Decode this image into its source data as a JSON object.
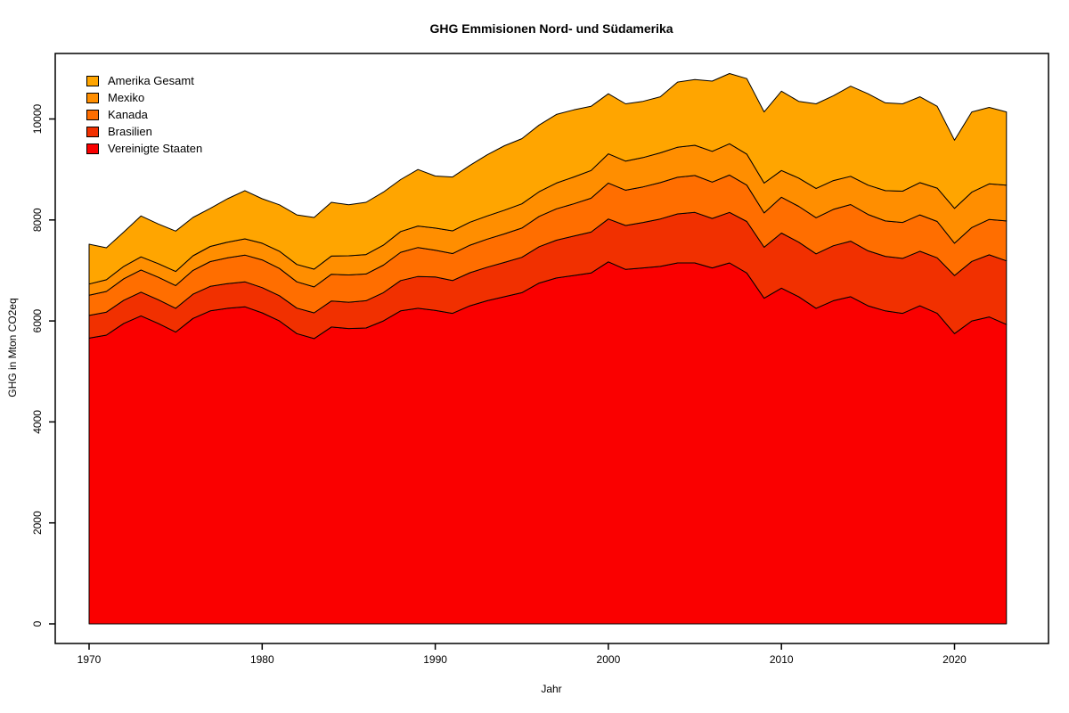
{
  "title": "GHG Emmisionen Nord- und Südamerika",
  "chart_data": {
    "type": "area",
    "stacked": true,
    "title": "GHG Emmisionen Nord- und Südamerika",
    "xlabel": "Jahr",
    "ylabel": "GHG in Mton CO2eq",
    "x": [
      1970,
      1971,
      1972,
      1973,
      1974,
      1975,
      1976,
      1977,
      1978,
      1979,
      1980,
      1981,
      1982,
      1983,
      1984,
      1985,
      1986,
      1987,
      1988,
      1989,
      1990,
      1991,
      1992,
      1993,
      1994,
      1995,
      1996,
      1997,
      1998,
      1999,
      2000,
      2001,
      2002,
      2003,
      2004,
      2005,
      2006,
      2007,
      2008,
      2009,
      2010,
      2011,
      2012,
      2013,
      2014,
      2015,
      2016,
      2017,
      2018,
      2019,
      2020,
      2021,
      2022,
      2023
    ],
    "series": [
      {
        "name": "Vereinigte Staaten",
        "color": "#FA0000",
        "values": [
          5660,
          5720,
          5950,
          6100,
          5950,
          5780,
          6050,
          6200,
          6250,
          6280,
          6160,
          6000,
          5750,
          5650,
          5880,
          5850,
          5860,
          6000,
          6200,
          6250,
          6210,
          6150,
          6300,
          6400,
          6480,
          6560,
          6750,
          6850,
          6900,
          6950,
          7170,
          7020,
          7050,
          7080,
          7150,
          7150,
          7050,
          7150,
          6950,
          6450,
          6650,
          6480,
          6250,
          6400,
          6480,
          6300,
          6200,
          6150,
          6300,
          6150,
          5750,
          6000,
          6080,
          5930
        ]
      },
      {
        "name": "Brasilien",
        "color": "#F13000",
        "values": [
          450,
          455,
          460,
          470,
          470,
          470,
          480,
          485,
          490,
          495,
          500,
          500,
          505,
          510,
          515,
          520,
          540,
          560,
          600,
          630,
          660,
          650,
          655,
          665,
          680,
          700,
          720,
          750,
          780,
          810,
          850,
          870,
          900,
          940,
          970,
          1000,
          980,
          1000,
          1020,
          1010,
          1090,
          1080,
          1080,
          1090,
          1100,
          1090,
          1080,
          1090,
          1080,
          1100,
          1150,
          1180,
          1230,
          1260
        ]
      },
      {
        "name": "Kanada",
        "color": "#FF6E00",
        "values": [
          400,
          410,
          425,
          440,
          445,
          450,
          470,
          490,
          510,
          530,
          550,
          540,
          520,
          515,
          530,
          540,
          530,
          545,
          560,
          575,
          530,
          535,
          545,
          555,
          565,
          580,
          600,
          620,
          640,
          670,
          710,
          700,
          705,
          720,
          725,
          730,
          720,
          740,
          720,
          680,
          710,
          710,
          715,
          720,
          725,
          720,
          700,
          710,
          720,
          720,
          640,
          670,
          700,
          790
        ]
      },
      {
        "name": "Mexiko",
        "color": "#FF8E00",
        "values": [
          220,
          230,
          245,
          260,
          270,
          280,
          290,
          300,
          310,
          320,
          330,
          340,
          345,
          350,
          360,
          380,
          385,
          395,
          410,
          425,
          440,
          450,
          455,
          460,
          470,
          480,
          490,
          510,
          530,
          550,
          580,
          575,
          580,
          590,
          595,
          600,
          610,
          620,
          615,
          590,
          530,
          560,
          580,
          570,
          560,
          580,
          600,
          620,
          640,
          660,
          690,
          700,
          705,
          710
        ]
      },
      {
        "name": "Amerika Gesamt",
        "color": "#FFA500",
        "role": "total",
        "values": [
          7520,
          7450,
          7760,
          8080,
          7920,
          7780,
          8050,
          8230,
          8420,
          8580,
          8420,
          8300,
          8100,
          8050,
          8350,
          8300,
          8350,
          8550,
          8800,
          9000,
          8870,
          8850,
          9080,
          9290,
          9470,
          9610,
          9880,
          10090,
          10180,
          10250,
          10500,
          10300,
          10350,
          10440,
          10730,
          10780,
          10750,
          10900,
          10800,
          10140,
          10550,
          10350,
          10300,
          10460,
          10650,
          10500,
          10320,
          10300,
          10440,
          10250,
          9580,
          10140,
          10230,
          10140
        ]
      }
    ],
    "note": "top band = Amerika Gesamt total minus sum of listed countries",
    "legend": {
      "position": "top-left",
      "order": [
        "Amerika Gesamt",
        "Mexiko",
        "Kanada",
        "Brasilien",
        "Vereinigte Staaten"
      ]
    },
    "x_ticks": [
      1970,
      1980,
      1990,
      2000,
      2010,
      2020
    ],
    "y_ticks": [
      0,
      2000,
      4000,
      6000,
      8000,
      10000
    ],
    "xlim": [
      1970,
      2023
    ],
    "ylim": [
      0,
      11700
    ],
    "grid": false,
    "axis_color": "#000000",
    "outline_color": "#000000",
    "background": "#FFFFFF"
  }
}
